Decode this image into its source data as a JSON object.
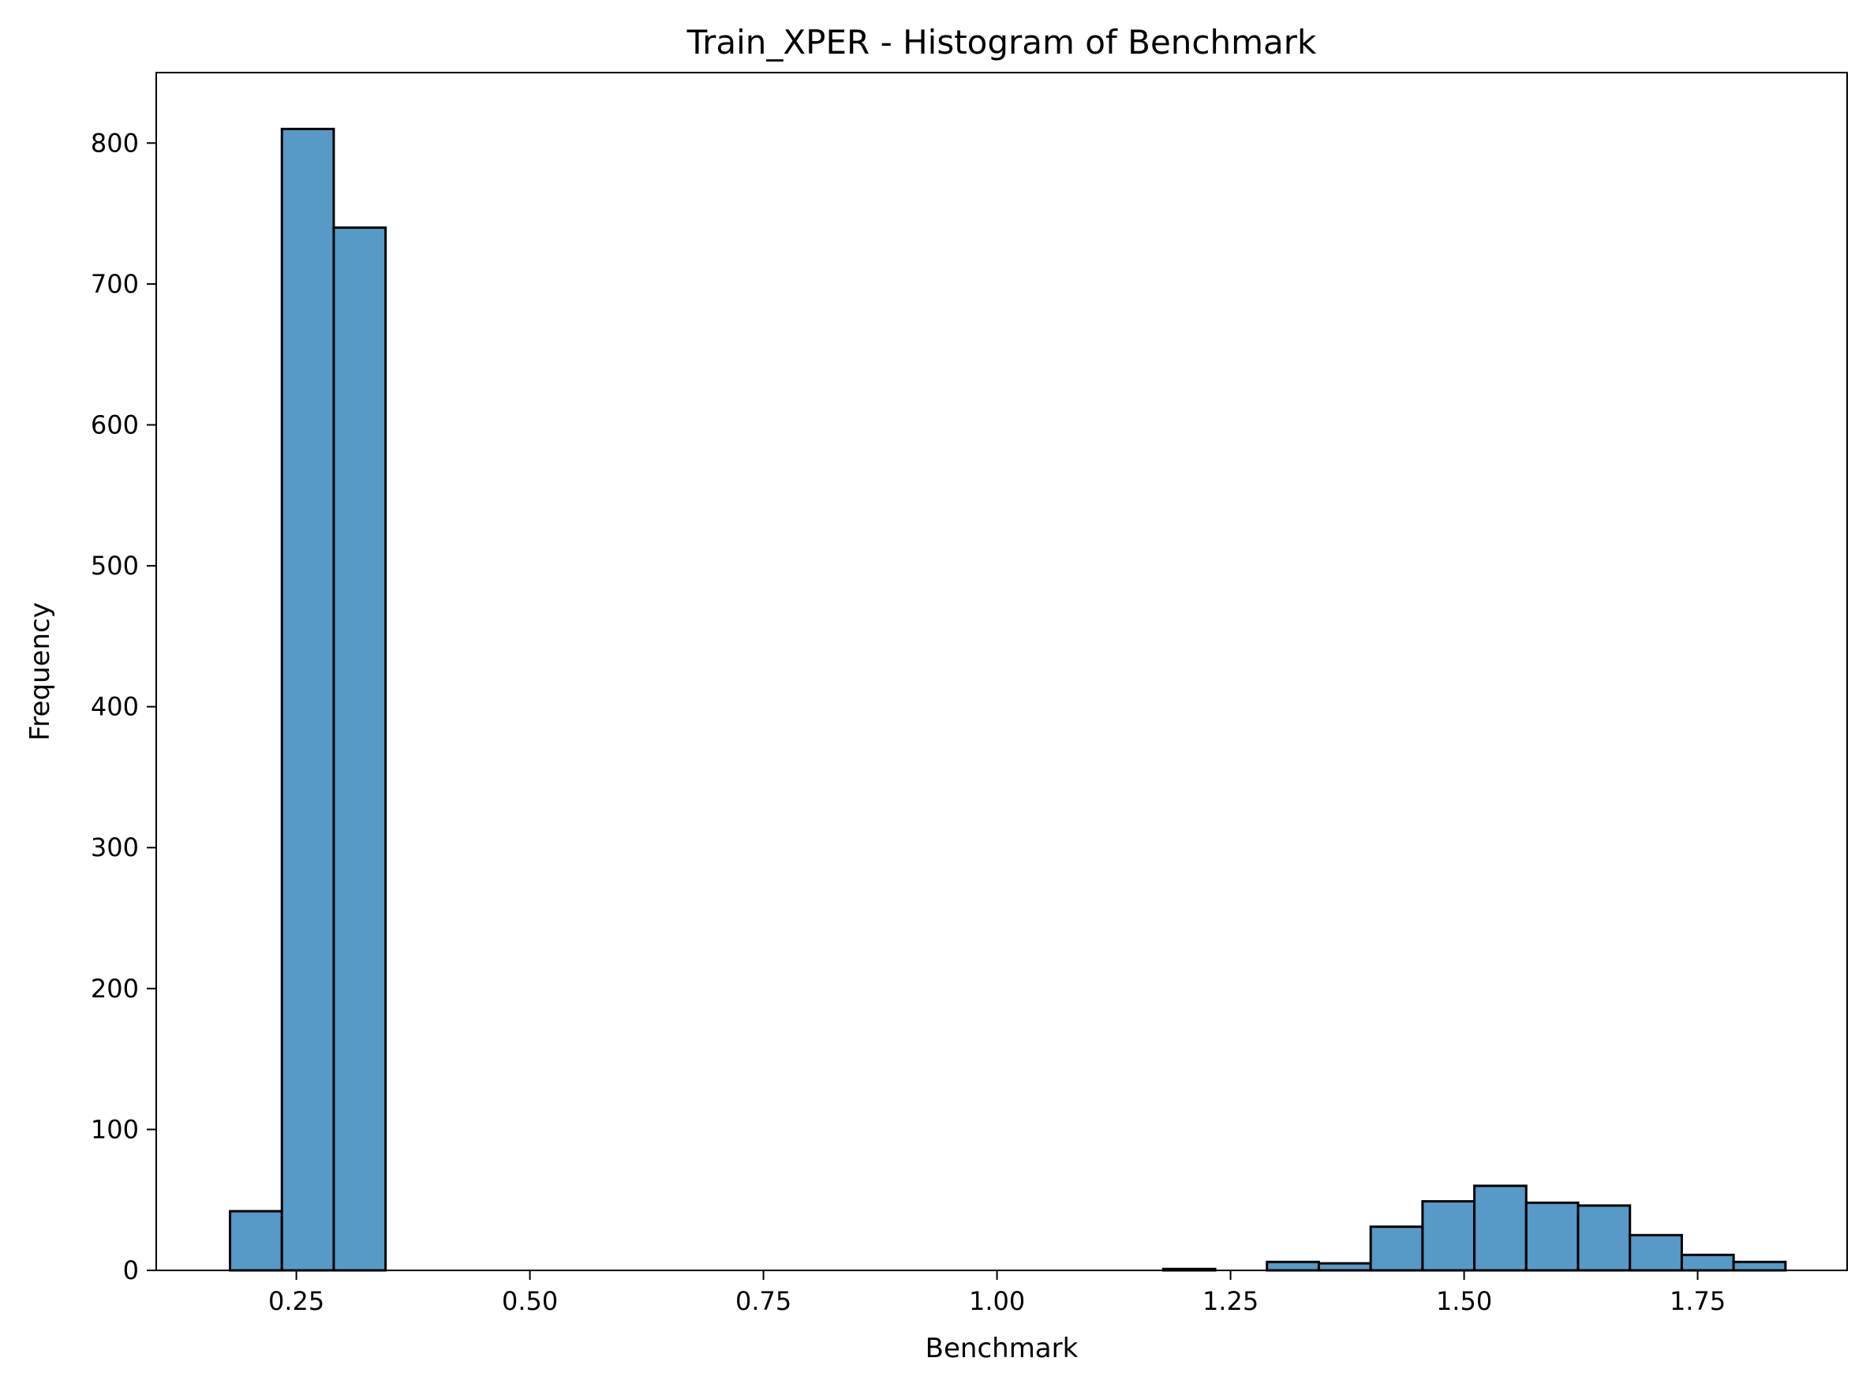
{
  "chart_data": {
    "type": "bar",
    "title": "Train_XPER - Histogram of Benchmark",
    "xlabel": "Benchmark",
    "ylabel": "Frequency",
    "xlim": [
      0.1,
      1.91
    ],
    "ylim": [
      0,
      850
    ],
    "x_ticks": [
      0.25,
      0.5,
      0.75,
      1.0,
      1.25,
      1.5,
      1.75
    ],
    "x_tick_labels": [
      "0.25",
      "0.50",
      "0.75",
      "1.00",
      "1.25",
      "1.50",
      "1.75"
    ],
    "y_ticks": [
      0,
      100,
      200,
      300,
      400,
      500,
      600,
      700,
      800
    ],
    "y_tick_labels": [
      "0",
      "100",
      "200",
      "300",
      "400",
      "500",
      "600",
      "700",
      "800"
    ],
    "grid": false,
    "bar_color": "#5799c7",
    "bar_edge_color": "#000000",
    "bins": [
      {
        "x0": 0.179,
        "x1": 0.2345,
        "count": 42
      },
      {
        "x0": 0.2345,
        "x1": 0.29,
        "count": 810
      },
      {
        "x0": 0.29,
        "x1": 0.3455,
        "count": 740
      },
      {
        "x0": 0.3455,
        "x1": 0.401,
        "count": 0
      },
      {
        "x0": 0.401,
        "x1": 0.4565,
        "count": 0
      },
      {
        "x0": 0.4565,
        "x1": 0.512,
        "count": 0
      },
      {
        "x0": 0.512,
        "x1": 0.5675,
        "count": 0
      },
      {
        "x0": 0.5675,
        "x1": 0.623,
        "count": 0
      },
      {
        "x0": 0.623,
        "x1": 0.6785,
        "count": 0
      },
      {
        "x0": 0.6785,
        "x1": 0.734,
        "count": 0
      },
      {
        "x0": 0.734,
        "x1": 0.7895,
        "count": 0
      },
      {
        "x0": 0.7895,
        "x1": 0.845,
        "count": 0
      },
      {
        "x0": 0.845,
        "x1": 0.9005,
        "count": 0
      },
      {
        "x0": 0.9005,
        "x1": 0.956,
        "count": 0
      },
      {
        "x0": 0.956,
        "x1": 1.0115,
        "count": 0
      },
      {
        "x0": 1.0115,
        "x1": 1.067,
        "count": 0
      },
      {
        "x0": 1.067,
        "x1": 1.1225,
        "count": 0
      },
      {
        "x0": 1.1225,
        "x1": 1.178,
        "count": 0
      },
      {
        "x0": 1.178,
        "x1": 1.2335,
        "count": 1
      },
      {
        "x0": 1.2335,
        "x1": 1.289,
        "count": 0
      },
      {
        "x0": 1.289,
        "x1": 1.3445,
        "count": 6
      },
      {
        "x0": 1.3445,
        "x1": 1.4,
        "count": 5
      },
      {
        "x0": 1.4,
        "x1": 1.4555,
        "count": 31
      },
      {
        "x0": 1.4555,
        "x1": 1.511,
        "count": 49
      },
      {
        "x0": 1.511,
        "x1": 1.5665,
        "count": 60
      },
      {
        "x0": 1.5665,
        "x1": 1.622,
        "count": 48
      },
      {
        "x0": 1.622,
        "x1": 1.6775,
        "count": 46
      },
      {
        "x0": 1.6775,
        "x1": 1.733,
        "count": 25
      },
      {
        "x0": 1.733,
        "x1": 1.7885,
        "count": 11
      },
      {
        "x0": 1.7885,
        "x1": 1.844,
        "count": 6
      }
    ]
  }
}
